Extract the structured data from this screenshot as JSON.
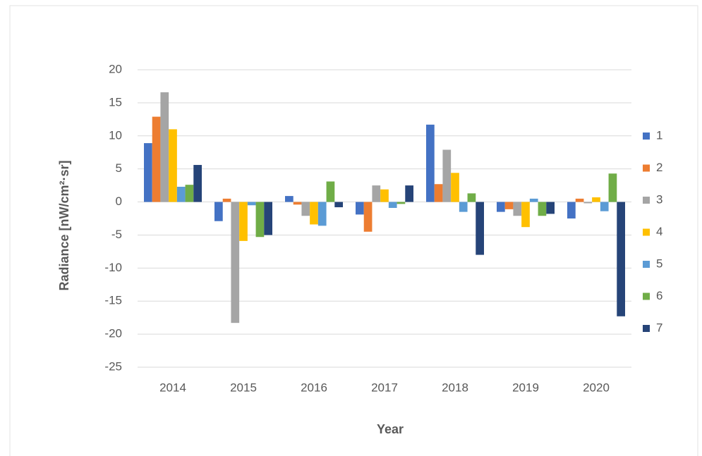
{
  "chart_data": {
    "type": "bar",
    "x_label": "Year",
    "y_label": "Radiance  [nW/cm²·sr]",
    "categories": [
      "2014",
      "2015",
      "2016",
      "2017",
      "2018",
      "2019",
      "2020"
    ],
    "series": [
      {
        "name": "1",
        "color": "#4472c4",
        "values": [
          8.9,
          -2.9,
          0.9,
          -1.9,
          11.7,
          -1.5,
          -2.5
        ]
      },
      {
        "name": "2",
        "color": "#ed7d31",
        "values": [
          12.9,
          0.5,
          -0.4,
          -4.5,
          2.7,
          -1.1,
          0.5
        ]
      },
      {
        "name": "3",
        "color": "#a5a5a5",
        "values": [
          16.6,
          -18.3,
          -2.1,
          2.5,
          7.9,
          -2.1,
          -0.2
        ]
      },
      {
        "name": "4",
        "color": "#ffc000",
        "values": [
          11.0,
          -5.9,
          -3.4,
          1.9,
          4.4,
          -3.8,
          0.7
        ]
      },
      {
        "name": "5",
        "color": "#5b9bd5",
        "values": [
          2.3,
          -0.5,
          -3.6,
          -0.9,
          -1.5,
          0.5,
          -1.4
        ]
      },
      {
        "name": "6",
        "color": "#70ad47",
        "values": [
          2.6,
          -5.3,
          3.1,
          -0.3,
          1.3,
          -2.1,
          4.3
        ]
      },
      {
        "name": "7",
        "color": "#264478",
        "values": [
          5.6,
          -5.0,
          -0.8,
          2.5,
          -8.0,
          -1.8,
          -17.3
        ]
      }
    ],
    "ylim": [
      -25,
      20
    ],
    "yticks": [
      -25,
      -20,
      -15,
      -10,
      -5,
      0,
      5,
      10,
      15,
      20
    ],
    "grid": true,
    "legend": "right"
  }
}
